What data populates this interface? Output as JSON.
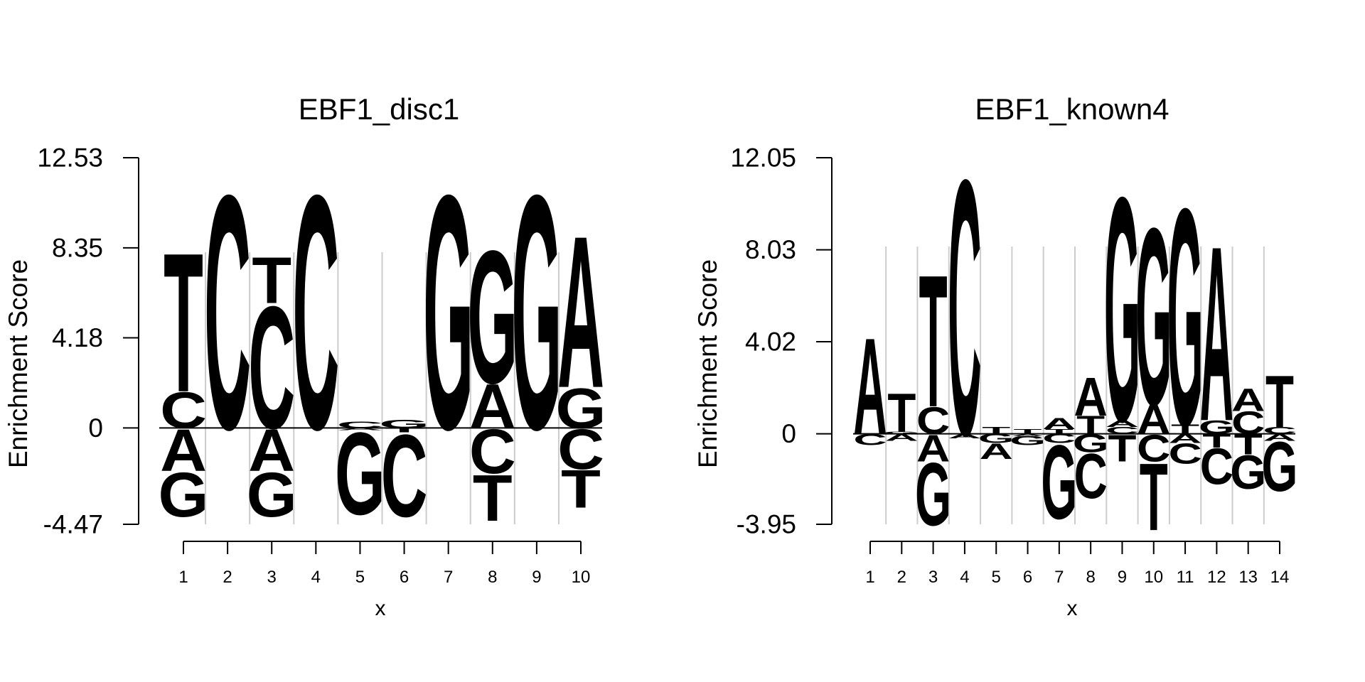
{
  "chart_data": [
    {
      "type": "sequence-logo",
      "title": "EBF1_disc1",
      "xlabel": "x",
      "ylabel": "Enrichment Score",
      "yticks": [
        "-4.47",
        "0",
        "4.18",
        "8.35",
        "12.53"
      ],
      "ylim": [
        -4.47,
        12.53
      ],
      "x": [
        "1",
        "2",
        "3",
        "4",
        "5",
        "6",
        "7",
        "8",
        "9",
        "10"
      ],
      "grid": "vertical separators",
      "positions": [
        {
          "pos": 1,
          "up": [
            [
              "C",
              1.7
            ],
            [
              "T",
              6.6
            ]
          ],
          "down": [
            [
              "A",
              2.0
            ],
            [
              "G",
              2.1
            ]
          ]
        },
        {
          "pos": 2,
          "up": [
            [
              "C",
              11.1
            ]
          ],
          "down": []
        },
        {
          "pos": 3,
          "up": [
            [
              "C",
              5.8
            ],
            [
              "T",
              2.2
            ]
          ],
          "down": [
            [
              "A",
              2.0
            ],
            [
              "G",
              2.1
            ]
          ]
        },
        {
          "pos": 4,
          "up": [
            [
              "C",
              11.1
            ]
          ],
          "down": []
        },
        {
          "pos": 5,
          "up": [
            [
              "C",
              0.3
            ]
          ],
          "down": [
            [
              "A",
              0.1
            ],
            [
              "G",
              3.9
            ]
          ]
        },
        {
          "pos": 6,
          "up": [
            [
              "G",
              0.4
            ]
          ],
          "down": [
            [
              "T",
              0.2
            ],
            [
              "C",
              3.9
            ]
          ]
        },
        {
          "pos": 7,
          "up": [
            [
              "G",
              11.1
            ]
          ],
          "down": []
        },
        {
          "pos": 8,
          "up": [
            [
              "A",
              2.1
            ],
            [
              "G",
              6.3
            ]
          ],
          "down": [
            [
              "C",
              2.1
            ],
            [
              "T",
              2.2
            ]
          ]
        },
        {
          "pos": 9,
          "up": [
            [
              "G",
              11.1
            ]
          ],
          "down": []
        },
        {
          "pos": 10,
          "up": [
            [
              "G",
              1.9
            ],
            [
              "A",
              7.2
            ]
          ],
          "down": [
            [
              "C",
              1.9
            ],
            [
              "T",
              1.8
            ]
          ]
        }
      ]
    },
    {
      "type": "sequence-logo",
      "title": "EBF1_known4",
      "xlabel": "x",
      "ylabel": "Enrichment Score",
      "yticks": [
        "-3.95",
        "0",
        "4.02",
        "8.03",
        "12.05"
      ],
      "ylim": [
        -3.95,
        12.05
      ],
      "x": [
        "1",
        "2",
        "3",
        "4",
        "5",
        "6",
        "7",
        "8",
        "9",
        "10",
        "11",
        "12",
        "13",
        "14"
      ],
      "grid": "vertical separators",
      "positions": [
        {
          "pos": 1,
          "up": [
            [
              "A",
              4.3
            ]
          ],
          "down": [
            [
              "C",
              0.5
            ]
          ]
        },
        {
          "pos": 2,
          "up": [
            [
              "G",
              0.1
            ],
            [
              "T",
              1.7
            ]
          ],
          "down": [
            [
              "A",
              0.3
            ]
          ]
        },
        {
          "pos": 3,
          "up": [
            [
              "C",
              1.2
            ],
            [
              "T",
              5.9
            ]
          ],
          "down": [
            [
              "A",
              1.2
            ],
            [
              "G",
              2.8
            ]
          ]
        },
        {
          "pos": 4,
          "up": [
            [
              "C",
              11.4
            ]
          ],
          "down": [
            [
              "A",
              0.2
            ]
          ]
        },
        {
          "pos": 5,
          "up": [
            [
              "T",
              0.3
            ]
          ],
          "down": [
            [
              "G",
              0.4
            ],
            [
              "A",
              0.7
            ]
          ]
        },
        {
          "pos": 6,
          "up": [
            [
              "T",
              0.2
            ]
          ],
          "down": [
            [
              "A",
              0.1
            ],
            [
              "G",
              0.4
            ]
          ]
        },
        {
          "pos": 7,
          "up": [
            [
              "T",
              0.2
            ],
            [
              "A",
              0.5
            ]
          ],
          "down": [
            [
              "C",
              0.4
            ],
            [
              "G",
              3.3
            ]
          ]
        },
        {
          "pos": 8,
          "up": [
            [
              "T",
              0.8
            ],
            [
              "A",
              1.7
            ]
          ],
          "down": [
            [
              "G",
              0.8
            ],
            [
              "C",
              2.0
            ]
          ]
        },
        {
          "pos": 9,
          "up": [
            [
              "C",
              0.3
            ],
            [
              "A",
              0.3
            ],
            [
              "G",
              10.0
            ]
          ],
          "down": [
            [
              "T",
              1.2
            ]
          ]
        },
        {
          "pos": 10,
          "up": [
            [
              "A",
              1.3
            ],
            [
              "G",
              7.9
            ]
          ],
          "down": [
            [
              "C",
              1.2
            ],
            [
              "T",
              3.0
            ]
          ]
        },
        {
          "pos": 11,
          "up": [
            [
              "T",
              0.4
            ],
            [
              "G",
              9.7
            ]
          ],
          "down": [
            [
              "A",
              0.4
            ],
            [
              "C",
              0.9
            ]
          ]
        },
        {
          "pos": 12,
          "up": [
            [
              "G",
              0.6
            ],
            [
              "A",
              7.8
            ]
          ],
          "down": [
            [
              "T",
              0.6
            ],
            [
              "C",
              1.6
            ]
          ]
        },
        {
          "pos": 13,
          "up": [
            [
              "C",
              1.0
            ],
            [
              "A",
              1.0
            ]
          ],
          "down": [
            [
              "T",
              0.9
            ],
            [
              "G",
              1.5
            ]
          ]
        },
        {
          "pos": 14,
          "up": [
            [
              "C",
              0.3
            ],
            [
              "T",
              2.3
            ]
          ],
          "down": [
            [
              "A",
              0.3
            ],
            [
              "G",
              2.2
            ]
          ]
        }
      ]
    }
  ],
  "colors": {
    "A": "#d7191c",
    "C": "#fdae61",
    "G": "#abdda4",
    "T": "#2b83ba",
    "grid": "#cccccc",
    "axis": "#000000"
  }
}
